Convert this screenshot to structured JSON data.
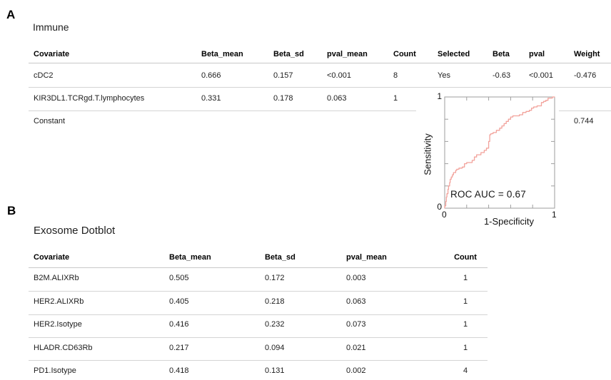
{
  "panel_a": {
    "label": "A",
    "title": "Immune",
    "table": {
      "headers": [
        "Covariate",
        "Beta_mean",
        "Beta_sd",
        "pval_mean",
        "Count",
        "Selected",
        "Beta",
        "pval",
        "Weight"
      ],
      "rows": [
        [
          "cDC2",
          "0.666",
          "0.157",
          "<0.001",
          "8",
          "Yes",
          "-0.63",
          "<0.001",
          "-0.476"
        ],
        [
          "KIR3DL1.TCRgd.T.lymphocytes",
          "0.331",
          "0.178",
          "0.063",
          "1",
          "",
          "",
          "",
          ""
        ],
        [
          "Constant",
          "",
          "",
          "",
          "",
          "",
          "",
          "",
          "0.744"
        ]
      ]
    }
  },
  "panel_b": {
    "label": "B",
    "title": "Exosome Dotblot",
    "table": {
      "headers": [
        "Covariate",
        "Beta_mean",
        "Beta_sd",
        "pval_mean",
        "Count"
      ],
      "rows": [
        [
          "B2M.ALIXRb",
          "0.505",
          "0.172",
          "0.003",
          "1"
        ],
        [
          "HER2.ALIXRb",
          "0.405",
          "0.218",
          "0.063",
          "1"
        ],
        [
          "HER2.Isotype",
          "0.416",
          "0.232",
          "0.073",
          "1"
        ],
        [
          "HLADR.CD63Rb",
          "0.217",
          "0.094",
          "0.021",
          "1"
        ],
        [
          "PD1.Isotype",
          "0.418",
          "0.131",
          "0.002",
          "4"
        ]
      ]
    }
  },
  "chart_data": {
    "type": "line",
    "title": "",
    "annotation": "ROC AUC = 0.67",
    "auc": 0.67,
    "xlabel": "1-Specificity",
    "ylabel": "Sensitivity",
    "xlim": [
      0,
      1
    ],
    "ylim": [
      0,
      1
    ],
    "x_tick_labels": [
      "0",
      "1"
    ],
    "y_tick_labels": [
      "0",
      "1"
    ],
    "minor_ticks": [
      0.2,
      0.4,
      0.6,
      0.8
    ],
    "grid": false,
    "legend": "none",
    "line_color": "#f2a29b",
    "series": [
      {
        "name": "ROC curve",
        "x": [
          0,
          0.01,
          0.015,
          0.02,
          0.03,
          0.035,
          0.045,
          0.05,
          0.06,
          0.07,
          0.08,
          0.1,
          0.11,
          0.13,
          0.16,
          0.18,
          0.2,
          0.22,
          0.25,
          0.27,
          0.29,
          0.31,
          0.33,
          0.36,
          0.38,
          0.4,
          0.41,
          0.42,
          0.44,
          0.47,
          0.5,
          0.52,
          0.54,
          0.56,
          0.58,
          0.6,
          0.62,
          0.65,
          0.68,
          0.71,
          0.74,
          0.77,
          0.79,
          0.81,
          0.84,
          0.86,
          0.88,
          0.9,
          0.92,
          0.94,
          0.96,
          0.98,
          1
        ],
        "y": [
          0,
          0.02,
          0.06,
          0.1,
          0.13,
          0.17,
          0.2,
          0.23,
          0.26,
          0.28,
          0.3,
          0.32,
          0.34,
          0.35,
          0.36,
          0.37,
          0.4,
          0.41,
          0.41,
          0.43,
          0.46,
          0.48,
          0.48,
          0.5,
          0.52,
          0.54,
          0.6,
          0.66,
          0.67,
          0.68,
          0.7,
          0.72,
          0.74,
          0.76,
          0.78,
          0.8,
          0.82,
          0.83,
          0.83,
          0.84,
          0.86,
          0.87,
          0.88,
          0.9,
          0.91,
          0.92,
          0.92,
          0.95,
          0.96,
          0.97,
          0.99,
          0.99,
          1
        ]
      }
    ]
  },
  "colors": {
    "curve": "#f2a29b",
    "table_line": "#d4d4d4",
    "spine": "#9e9e9e",
    "text": "#1c1c1c"
  }
}
